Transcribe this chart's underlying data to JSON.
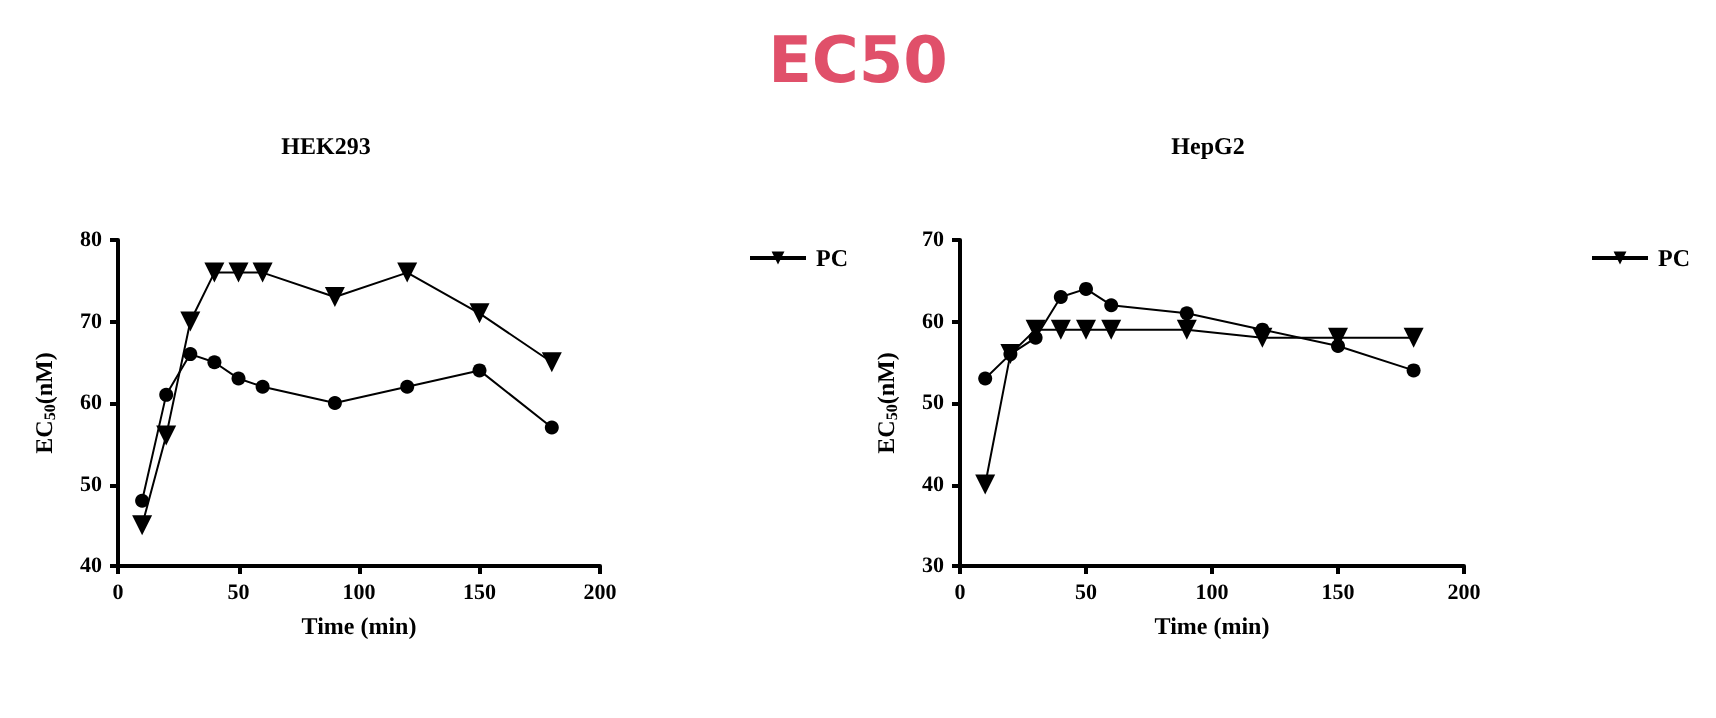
{
  "chart_data": [
    {
      "type": "line",
      "title": "HEK293",
      "annotations": [
        "EC50"
      ],
      "xlabel": "Time (min)",
      "ylabel": "EC$_{50}$(nM)",
      "x": [
        10,
        20,
        30,
        40,
        50,
        60,
        90,
        120,
        150,
        180
      ],
      "xlim": [
        0,
        200
      ],
      "xticks": [
        0,
        50,
        100,
        150,
        200
      ],
      "ylim": [
        40,
        80
      ],
      "yticks": [
        40,
        50,
        60,
        70,
        80
      ],
      "legend": "right",
      "grid": false,
      "series": [
        {
          "color": "#000000",
          "marker": "circle",
          "values": [
            48,
            61,
            66,
            65,
            63,
            62,
            60,
            62,
            64,
            57
          ]
        },
        {
          "name": "PC",
          "color": "#000000",
          "marker": "triangle",
          "values": [
            45,
            56,
            70,
            76,
            76,
            76,
            73,
            76,
            71,
            65
          ]
        }
      ]
    },
    {
      "type": "line",
      "title": "HepG2",
      "xlabel": "Time (min)",
      "ylabel": "EC$_{50}$(nM)",
      "x": [
        10,
        20,
        30,
        40,
        50,
        60,
        90,
        120,
        150,
        180
      ],
      "xlim": [
        0,
        200
      ],
      "xticks": [
        0,
        50,
        100,
        150,
        200
      ],
      "ylim": [
        30,
        70
      ],
      "yticks": [
        30,
        40,
        50,
        60,
        70
      ],
      "legend": "right",
      "grid": false,
      "series": [
        {
          "color": "#000000",
          "marker": "circle",
          "values": [
            53,
            56,
            58,
            63,
            64,
            62,
            61,
            59,
            57,
            54
          ]
        },
        {
          "name": "PC",
          "color": "#000000",
          "marker": "triangle",
          "values": [
            40,
            56,
            59,
            59,
            59,
            59,
            59,
            58,
            58,
            58
          ]
        }
      ]
    }
  ]
}
